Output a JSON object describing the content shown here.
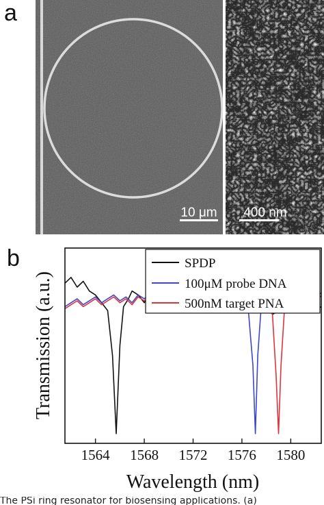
{
  "panel_a": {
    "letter": "a",
    "scalebar_left": "10 μm",
    "scalebar_right": "400 nm"
  },
  "panel_b": {
    "letter": "b"
  },
  "caption": "The PSi ring resonator for biosensing applications. (a)",
  "colors": {
    "spdp": "#111111",
    "probe": "#3b46c8",
    "target": "#e0323a"
  },
  "chart_data": {
    "type": "line",
    "xlabel": "Wavelength (nm)",
    "ylabel": "Transmission (a.u.)",
    "xlim": [
      1561.5,
      1582.5
    ],
    "ylim": [
      0,
      1
    ],
    "x_ticks": [
      1564,
      1568,
      1572,
      1576,
      1580
    ],
    "grid": false,
    "legend_position": "top-right",
    "series": [
      {
        "name": "SPDP",
        "x": [
          1561.5,
          1562,
          1562.5,
          1563,
          1563.5,
          1564,
          1564.5,
          1565,
          1565.4,
          1565.7,
          1566,
          1566.3,
          1566.7,
          1567,
          1567.5,
          1568,
          1568.5,
          1569,
          1569.5,
          1570,
          1570.5,
          1571,
          1571.5,
          1572,
          1572.5,
          1573,
          1573.5,
          1574,
          1574.5,
          1575,
          1575.5,
          1576,
          1576.5,
          1577,
          1577.5,
          1578,
          1578.5,
          1579,
          1579.5,
          1580,
          1580.5,
          1581,
          1581.5,
          1582,
          1582.5
        ],
        "y": [
          0.82,
          0.85,
          0.8,
          0.83,
          0.78,
          0.76,
          0.72,
          0.68,
          0.45,
          0.05,
          0.5,
          0.7,
          0.74,
          0.78,
          0.76,
          0.72,
          0.78,
          0.8,
          0.74,
          0.76,
          0.8,
          0.77,
          0.74,
          0.79,
          0.76,
          0.72,
          0.78,
          0.75,
          0.77,
          0.8,
          0.82,
          0.79,
          0.76,
          0.74,
          0.7,
          0.72,
          0.66,
          0.68,
          0.7,
          0.72,
          0.67,
          0.7,
          0.72,
          0.68,
          0.7
        ]
      },
      {
        "name": "100μM probe DNA",
        "x": [
          1561.5,
          1562,
          1562.5,
          1563,
          1563.5,
          1564,
          1564.5,
          1565,
          1565.5,
          1566,
          1566.5,
          1567,
          1567.5,
          1568,
          1568.5,
          1569,
          1569.5,
          1570,
          1570.5,
          1571,
          1571.5,
          1572,
          1572.5,
          1573,
          1573.5,
          1574,
          1574.5,
          1575,
          1575.5,
          1576,
          1576.5,
          1576.9,
          1577.1,
          1577.3,
          1577.6,
          1578,
          1578.5,
          1579,
          1579.5,
          1580,
          1580.5,
          1581,
          1581.5,
          1582,
          1582.5
        ],
        "y": [
          0.7,
          0.72,
          0.74,
          0.71,
          0.73,
          0.75,
          0.72,
          0.74,
          0.76,
          0.73,
          0.75,
          0.72,
          0.76,
          0.74,
          0.77,
          0.73,
          0.75,
          0.78,
          0.74,
          0.76,
          0.73,
          0.77,
          0.74,
          0.76,
          0.79,
          0.75,
          0.77,
          0.74,
          0.76,
          0.73,
          0.7,
          0.4,
          0.05,
          0.45,
          0.72,
          0.76,
          0.74,
          0.77,
          0.75,
          0.78,
          0.74,
          0.76,
          0.79,
          0.75,
          0.77
        ]
      },
      {
        "name": "500nM target PNA",
        "x": [
          1561.5,
          1562,
          1562.5,
          1563,
          1563.5,
          1564,
          1564.5,
          1565,
          1565.5,
          1566,
          1566.5,
          1567,
          1567.5,
          1568,
          1568.5,
          1569,
          1569.5,
          1570,
          1570.5,
          1571,
          1571.5,
          1572,
          1572.5,
          1573,
          1573.5,
          1574,
          1574.5,
          1575,
          1575.5,
          1576,
          1576.5,
          1577,
          1577.5,
          1578,
          1578.5,
          1578.8,
          1579,
          1579.2,
          1579.5,
          1580,
          1580.5,
          1581,
          1581.5,
          1582,
          1582.5
        ],
        "y": [
          0.69,
          0.71,
          0.73,
          0.7,
          0.72,
          0.74,
          0.71,
          0.73,
          0.75,
          0.72,
          0.74,
          0.71,
          0.75,
          0.73,
          0.76,
          0.72,
          0.74,
          0.77,
          0.73,
          0.75,
          0.72,
          0.76,
          0.73,
          0.75,
          0.78,
          0.74,
          0.76,
          0.73,
          0.75,
          0.72,
          0.74,
          0.71,
          0.73,
          0.7,
          0.66,
          0.35,
          0.05,
          0.4,
          0.7,
          0.74,
          0.73,
          0.76,
          0.74,
          0.77,
          0.75
        ]
      }
    ]
  }
}
